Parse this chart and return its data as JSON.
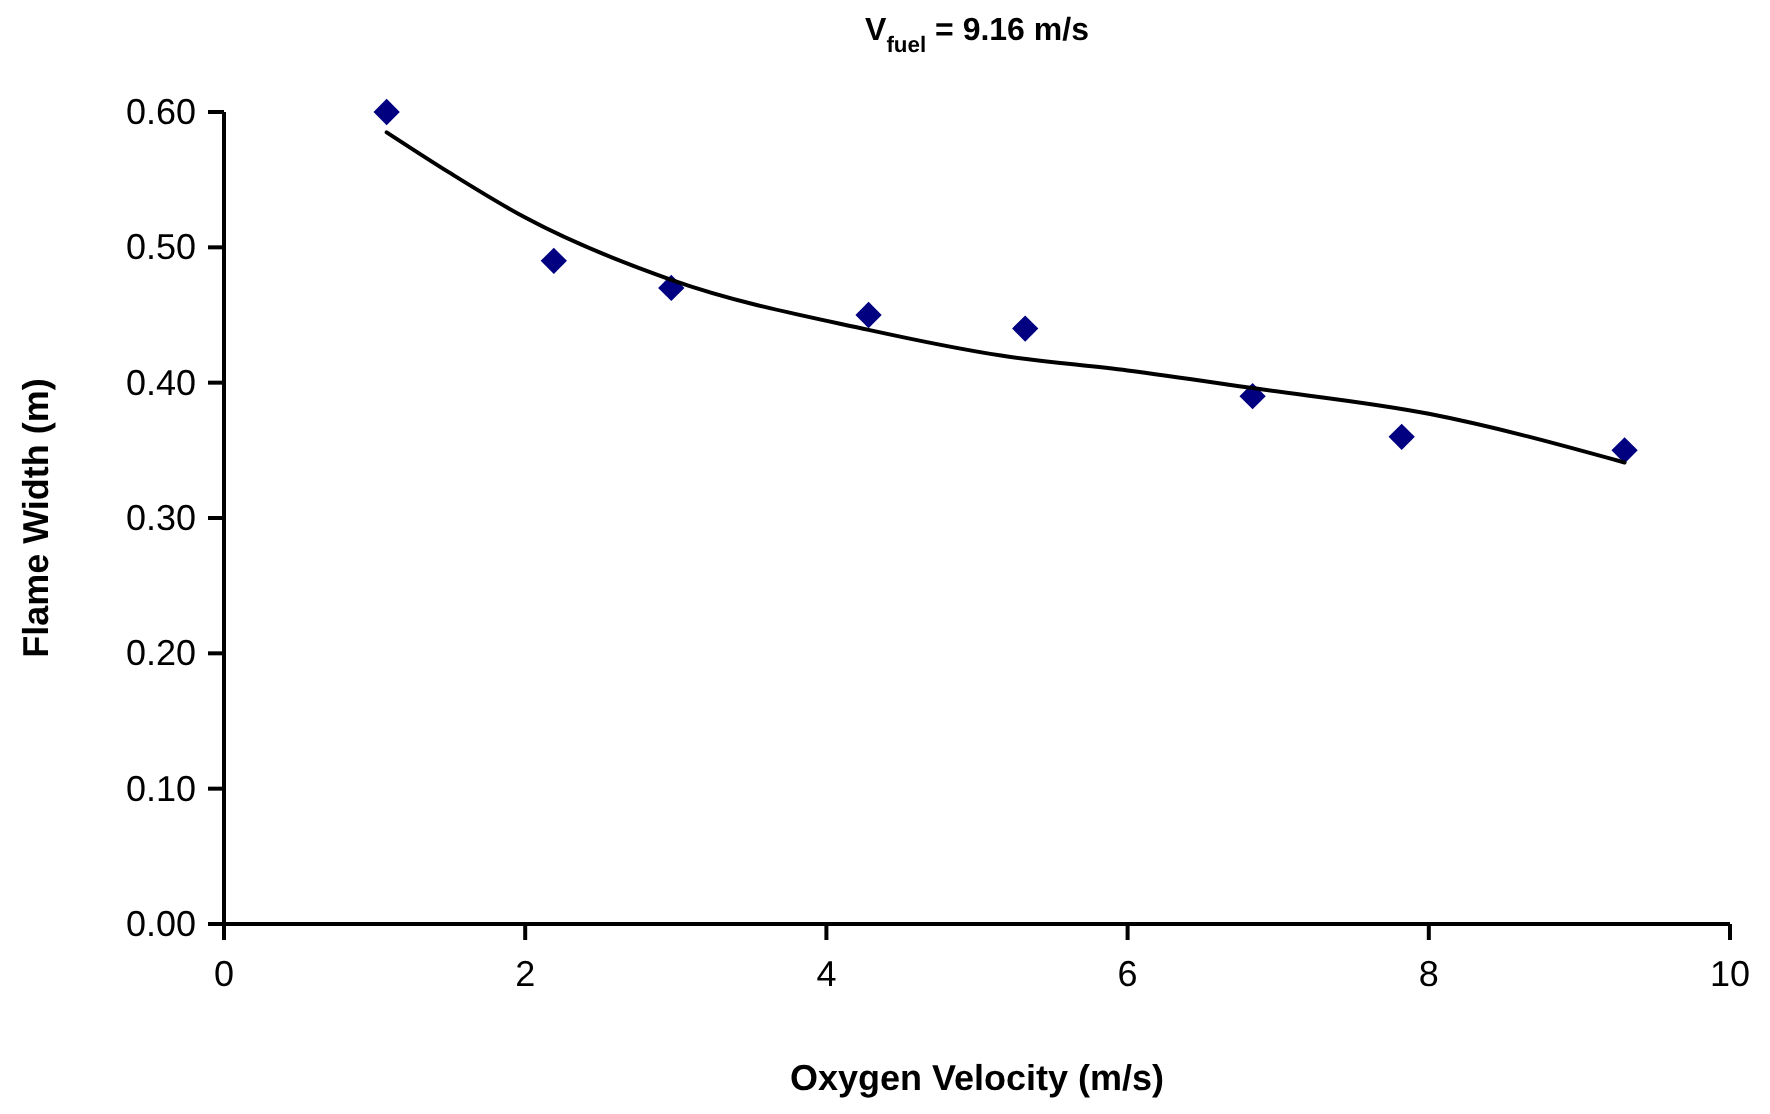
{
  "chart_data": {
    "type": "scatter",
    "title": "V$_{fuel}$ = 9.16 m/s",
    "xlabel": "Oxygen Velocity (m/s)",
    "ylabel": "Flame Width (m)",
    "xlim": [
      0,
      10
    ],
    "xticks": [
      0,
      2,
      4,
      6,
      8,
      10
    ],
    "ylim": [
      0,
      0.6
    ],
    "yticks": [
      {
        "value": 0,
        "label": "0.00"
      },
      {
        "value": 0.1,
        "label": "0.10"
      },
      {
        "value": 0.2,
        "label": "0.20"
      },
      {
        "value": 0.3,
        "label": "0.30"
      },
      {
        "value": 0.4,
        "label": "0.40"
      },
      {
        "value": 0.5,
        "label": "0.50"
      },
      {
        "value": 0.6,
        "label": "0.60"
      }
    ],
    "grid": false,
    "series": [
      {
        "marker": "diamond",
        "color": "#000080",
        "x": [
          1.08,
          2.19,
          2.97,
          4.28,
          5.32,
          6.83,
          7.82,
          9.3
        ],
        "values": [
          0.6,
          0.49,
          0.47,
          0.45,
          0.44,
          0.39,
          0.36,
          0.35
        ]
      },
      {
        "type": "line",
        "marker": "none",
        "line_style": "solid",
        "color": "#000000",
        "x": [
          1.08,
          1.5,
          2,
          2.97,
          4.28,
          5.16,
          6,
          6.83,
          8,
          9.3
        ],
        "values": [
          0.585,
          0.555,
          0.522,
          0.476,
          0.439,
          0.42,
          0.409,
          0.396,
          0.377,
          0.341
        ]
      }
    ]
  }
}
